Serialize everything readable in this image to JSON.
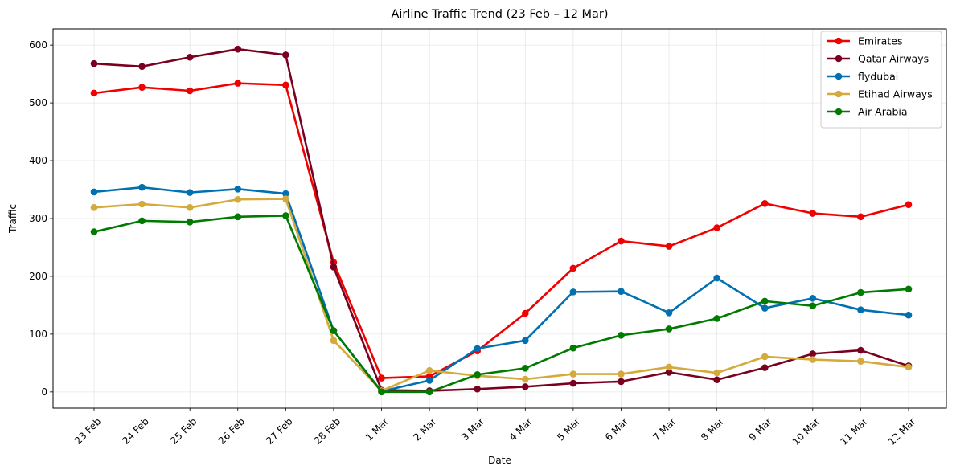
{
  "chart_data": {
    "type": "line",
    "title": "Airline Traffic Trend (23 Feb – 12 Mar)",
    "xlabel": "Date",
    "ylabel": "Traffic",
    "categories": [
      "23 Feb",
      "24 Feb",
      "25 Feb",
      "26 Feb",
      "27 Feb",
      "28 Feb",
      "1 Mar",
      "2 Mar",
      "3 Mar",
      "4 Mar",
      "5 Mar",
      "6 Mar",
      "7 Mar",
      "8 Mar",
      "9 Mar",
      "10 Mar",
      "11 Mar",
      "12 Mar"
    ],
    "ylim": [
      -28,
      628
    ],
    "yticks": [
      0,
      100,
      200,
      300,
      400,
      500,
      600
    ],
    "grid": true,
    "legend_position": "top-right",
    "series": [
      {
        "name": "Emirates",
        "color": "#f00000",
        "values": [
          517,
          527,
          521,
          534,
          531,
          224,
          24,
          27,
          71,
          136,
          214,
          261,
          252,
          284,
          326,
          309,
          303,
          324
        ]
      },
      {
        "name": "Qatar Airways",
        "color": "#7a0020",
        "values": [
          568,
          563,
          579,
          593,
          583,
          216,
          3,
          2,
          5,
          9,
          15,
          18,
          34,
          21,
          42,
          66,
          72,
          45
        ]
      },
      {
        "name": "flydubai",
        "color": "#0070b0",
        "values": [
          346,
          354,
          345,
          351,
          343,
          106,
          1,
          20,
          75,
          89,
          173,
          174,
          137,
          197,
          145,
          162,
          142,
          133
        ]
      },
      {
        "name": "Etihad Airways",
        "color": "#d4aa3c",
        "values": [
          319,
          325,
          319,
          333,
          334,
          89,
          2,
          37,
          28,
          22,
          31,
          31,
          43,
          33,
          61,
          56,
          53,
          43
        ]
      },
      {
        "name": "Air Arabia",
        "color": "#007a00",
        "values": [
          277,
          296,
          294,
          303,
          305,
          106,
          0,
          0,
          30,
          41,
          76,
          98,
          109,
          127,
          157,
          149,
          172,
          178
        ]
      }
    ]
  }
}
